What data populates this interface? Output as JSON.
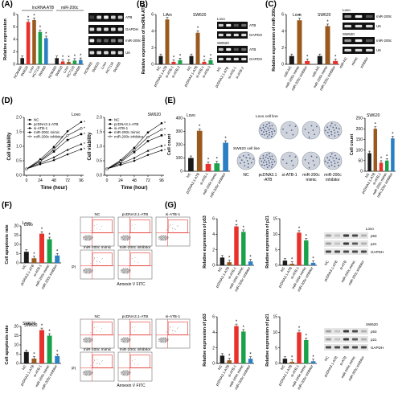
{
  "panel_labels": [
    "(A)",
    "(B)",
    "(C)",
    "(D)",
    "(E)",
    "(F)",
    "(G)"
  ],
  "colors": {
    "black": "#1a1a1a",
    "brown": "#9a5a1e",
    "red": "#e8312a",
    "green": "#1aa24a",
    "blue": "#2b7fc3",
    "gel_bg": "#111111",
    "band": "#f2f2f2",
    "gray": "#8c8c8c",
    "wb_bg": "#e6e6e6",
    "wb_band": "#3a3a3a",
    "dish": "#cfd4dc",
    "colony": "#50608c",
    "flow_box": "#e3302a"
  },
  "chart_data": [
    {
      "id": "A",
      "type": "bar",
      "ylabel": "Relative expression",
      "ylim": [
        0,
        8
      ],
      "yticks": [
        "0",
        "2",
        "4",
        "6",
        "8"
      ],
      "group_labels": [
        "lncRNA ATB",
        "miR-200c"
      ],
      "categories": [
        "NCM460",
        "SW620",
        "Lovo",
        "HCT116",
        "SW480",
        "NCM460",
        "SW620",
        "Lovo",
        "HCT116",
        "SW480"
      ],
      "values": [
        1,
        6.8,
        7.1,
        5.2,
        4.2,
        1,
        0.45,
        0.4,
        0.6,
        0.7
      ],
      "colors": [
        "#1a1a1a",
        "#e8312a",
        "#9a5a1e",
        "#1aa24a",
        "#2b7fc3",
        "#1a1a1a",
        "#e8312a",
        "#9a5a1e",
        "#1aa24a",
        "#2b7fc3"
      ],
      "stars": [
        false,
        true,
        true,
        true,
        true,
        false,
        true,
        true,
        true,
        true
      ],
      "blot_labels": [
        "ATB",
        "GAPDH",
        "miR-200c",
        "U6"
      ],
      "lanes": [
        "NCM460",
        "SW620",
        "Lovo",
        "HCT116",
        "SW480"
      ]
    },
    {
      "id": "B",
      "type": "bar",
      "ylabel": "Relative expression of lncRNA ATB",
      "ylim": [
        0,
        6
      ],
      "yticks": [
        "0",
        "2",
        "4",
        "6"
      ],
      "group_labels": [
        "Lovo",
        "SW620"
      ],
      "categories": [
        "NC",
        "pcDNA3.1-ATB",
        "si-ATB-1",
        "si-ATB-2",
        "NC",
        "pcDNA3.1-ATB",
        "si-ATB-1",
        "si-ATB-2"
      ],
      "values": [
        1,
        5.4,
        0.3,
        0.5,
        1,
        3.8,
        0.3,
        0.5
      ],
      "colors": [
        "#1a1a1a",
        "#9a5a1e",
        "#e8312a",
        "#1aa24a",
        "#1a1a1a",
        "#9a5a1e",
        "#e8312a",
        "#1aa24a"
      ],
      "stars": [
        false,
        true,
        true,
        true,
        false,
        true,
        true,
        true
      ],
      "blot_cells": [
        "Lovo",
        "SW620"
      ],
      "blot_labels": [
        "ATB",
        "GAPDH"
      ],
      "lanes": [
        "NC",
        "pcDNA3.1-ATB",
        "si-ATB-1",
        "si-ATB-2"
      ]
    },
    {
      "id": "C",
      "type": "bar",
      "ylabel": "Relative expression of miR-200c",
      "ylim": [
        0,
        6
      ],
      "yticks": [
        "0",
        "2",
        "4",
        "6"
      ],
      "group_labels": [
        "Lovo",
        "SW620"
      ],
      "categories": [
        "miR-NC",
        "miR-200c mimic",
        "miR-200c inhibitor",
        "miR-NC",
        "miR-200c mimic",
        "miR-200c inhibitor"
      ],
      "values": [
        1,
        5.3,
        0.4,
        1,
        4.6,
        0.4
      ],
      "colors": [
        "#1a1a1a",
        "#9a5a1e",
        "#e8312a",
        "#1a1a1a",
        "#9a5a1e",
        "#e8312a"
      ],
      "stars": [
        false,
        true,
        true,
        false,
        true,
        true
      ],
      "blot_cells": [
        "Lovo",
        "SW620"
      ],
      "blot_labels": [
        "miR-200c",
        "U6"
      ],
      "lanes": [
        "miR-NC",
        "mimic",
        "inhibitor"
      ]
    },
    {
      "id": "D1",
      "type": "line",
      "title": "Lovo",
      "xlabel": "Time (hour)",
      "ylabel": "Cell viability",
      "x": [
        0,
        24,
        48,
        72,
        96
      ],
      "xticks": [
        "0",
        "24",
        "48",
        "72",
        "96"
      ],
      "ylim": [
        0,
        2.0
      ],
      "yticks": [
        "0.0",
        "0.5",
        "1.0",
        "1.5",
        "2.0"
      ],
      "series": [
        {
          "name": "NC",
          "values": [
            0.22,
            0.48,
            0.82,
            1.22,
            1.42
          ],
          "marker": "square"
        },
        {
          "name": "pcDNA3.1-ATB",
          "values": [
            0.22,
            0.55,
            0.98,
            1.52,
            1.84
          ],
          "marker": "circle"
        },
        {
          "name": "si-ATB-1",
          "values": [
            0.22,
            0.42,
            0.62,
            0.88,
            1.08
          ],
          "marker": "triangle"
        },
        {
          "name": "miR-200c mimic",
          "values": [
            0.22,
            0.38,
            0.52,
            0.72,
            0.9
          ],
          "marker": "diamond"
        },
        {
          "name": "miR-200c inhibitor",
          "values": [
            0.22,
            0.5,
            0.9,
            1.38,
            1.62
          ],
          "marker": "circle-open"
        }
      ]
    },
    {
      "id": "D2",
      "type": "line",
      "title": "SW620",
      "xlabel": "Time (hour)",
      "ylabel": "Cell viability",
      "x": [
        0,
        24,
        48,
        72,
        96
      ],
      "xticks": [
        "0",
        "24",
        "48",
        "72",
        "96"
      ],
      "ylim": [
        0,
        2.0
      ],
      "yticks": [
        "0.0",
        "0.5",
        "1.0",
        "1.5",
        "2.0"
      ],
      "series": [
        {
          "name": "NC",
          "values": [
            0.22,
            0.45,
            0.8,
            1.18,
            1.38
          ],
          "marker": "square"
        },
        {
          "name": "pcDNA3.1-ATB",
          "values": [
            0.22,
            0.52,
            0.95,
            1.48,
            1.8
          ],
          "marker": "circle"
        },
        {
          "name": "si-ATB-1",
          "values": [
            0.22,
            0.4,
            0.6,
            0.85,
            1.02
          ],
          "marker": "triangle"
        },
        {
          "name": "miR-200c mimic",
          "values": [
            0.22,
            0.36,
            0.5,
            0.7,
            0.86
          ],
          "marker": "diamond"
        },
        {
          "name": "miR-200c inhibitor",
          "values": [
            0.22,
            0.48,
            0.88,
            1.32,
            1.58
          ],
          "marker": "circle-open"
        }
      ]
    },
    {
      "id": "E1",
      "type": "bar",
      "title": "Lovo",
      "ylabel": "Cell count",
      "ylim": [
        0,
        400
      ],
      "yticks": [
        "0",
        "100",
        "200",
        "300",
        "400"
      ],
      "categories": [
        "NC",
        "pcDNA3.1-ATB",
        "si-ATB-1",
        "miR-200c mimic",
        "miR-200c inhibitor"
      ],
      "values": [
        100,
        305,
        55,
        60,
        215
      ],
      "colors": [
        "#1a1a1a",
        "#9a5a1e",
        "#e8312a",
        "#1aa24a",
        "#2b7fc3"
      ],
      "stars": [
        false,
        true,
        true,
        true,
        true
      ]
    },
    {
      "id": "E2",
      "type": "bar",
      "title": "SW620",
      "ylabel": "Cell count",
      "ylim": [
        0,
        250
      ],
      "yticks": [
        "0",
        "50",
        "100",
        "150",
        "200",
        "250"
      ],
      "categories": [
        "NC",
        "pcDNA3.1-ATB",
        "si-ATB-1",
        "miR-200c mimic",
        "miR-200c inhibitor"
      ],
      "values": [
        85,
        200,
        40,
        50,
        155
      ],
      "colors": [
        "#1a1a1a",
        "#9a5a1e",
        "#e8312a",
        "#1aa24a",
        "#2b7fc3"
      ],
      "stars": [
        false,
        true,
        true,
        true,
        true
      ]
    },
    {
      "id": "F1",
      "type": "bar",
      "title": "Lovo",
      "ylabel": "Cell apoptosis rate",
      "ylim": [
        0,
        20
      ],
      "yticks": [
        "0",
        "5",
        "10",
        "15",
        "20"
      ],
      "categories": [
        "NC",
        "pcDNA3.1-ATB",
        "si-ATB-1",
        "miR-200c mimic",
        "miR-200c inhibitor"
      ],
      "values": [
        6,
        2.5,
        15.8,
        12.8,
        4
      ],
      "colors": [
        "#1a1a1a",
        "#9a5a1e",
        "#e8312a",
        "#1aa24a",
        "#2b7fc3"
      ],
      "stars": [
        false,
        true,
        true,
        true,
        true
      ]
    },
    {
      "id": "F2",
      "type": "bar",
      "title": "SW620",
      "ylabel": "Cell apoptosis rate",
      "ylim": [
        0,
        20
      ],
      "yticks": [
        "0",
        "5",
        "10",
        "15",
        "20"
      ],
      "categories": [
        "NC",
        "pcDNA3.1-ATB",
        "si-ATB-1",
        "miR-200c mimic",
        "miR-200c inhibitor"
      ],
      "values": [
        6.2,
        2.6,
        18,
        15,
        4
      ],
      "colors": [
        "#1a1a1a",
        "#9a5a1e",
        "#e8312a",
        "#1aa24a",
        "#2b7fc3"
      ],
      "stars": [
        false,
        true,
        true,
        true,
        true
      ]
    },
    {
      "id": "G1",
      "type": "bar",
      "ylabel": "Relative expression of p53",
      "ylim": [
        0,
        6
      ],
      "yticks": [
        "0",
        "2",
        "4",
        "6"
      ],
      "categories": [
        "NC",
        "pcDNA3.1-ATB",
        "si-ATB-1",
        "miR-200c mimic",
        "miR-200c inhibitor"
      ],
      "values": [
        1,
        0.4,
        5,
        4.3,
        0.5
      ],
      "colors": [
        "#1a1a1a",
        "#9a5a1e",
        "#e8312a",
        "#1aa24a",
        "#2b7fc3"
      ],
      "stars": [
        false,
        true,
        true,
        true,
        true
      ]
    },
    {
      "id": "G2",
      "type": "bar",
      "ylabel": "Relative expression of p21",
      "ylim": [
        0,
        15
      ],
      "yticks": [
        "0",
        "5",
        "10",
        "15"
      ],
      "categories": [
        "NC",
        "pcDNA3.1-ATB",
        "si-ATB-1",
        "miR-200c mimic",
        "miR-200c inhibitor"
      ],
      "values": [
        1.5,
        0.5,
        10.5,
        8,
        0.8
      ],
      "colors": [
        "#1a1a1a",
        "#9a5a1e",
        "#e8312a",
        "#1aa24a",
        "#2b7fc3"
      ],
      "stars": [
        false,
        true,
        true,
        true,
        true
      ]
    },
    {
      "id": "G3",
      "type": "bar",
      "ylabel": "Relative expression of p53",
      "ylim": [
        0,
        6
      ],
      "yticks": [
        "0",
        "2",
        "4",
        "6"
      ],
      "categories": [
        "NC",
        "pcDNA3.1-ATB",
        "si-ATB-1",
        "miR-200c mimic",
        "miR-200c inhibitor"
      ],
      "values": [
        1,
        0.4,
        4.8,
        4.1,
        0.6
      ],
      "colors": [
        "#1a1a1a",
        "#9a5a1e",
        "#e8312a",
        "#1aa24a",
        "#2b7fc3"
      ],
      "stars": [
        false,
        true,
        true,
        true,
        true
      ]
    },
    {
      "id": "G4",
      "type": "bar",
      "ylabel": "Relative expression of p21",
      "ylim": [
        0,
        15
      ],
      "yticks": [
        "0",
        "5",
        "10",
        "15"
      ],
      "categories": [
        "NC",
        "pcDNA3.1-ATB",
        "si-ATB-1",
        "miR-200c mimic",
        "miR-200c inhibitor"
      ],
      "values": [
        1.5,
        0.5,
        10,
        7.5,
        0.7
      ],
      "colors": [
        "#1a1a1a",
        "#9a5a1e",
        "#e8312a",
        "#1aa24a",
        "#2b7fc3"
      ],
      "stars": [
        false,
        true,
        true,
        true,
        true
      ]
    }
  ],
  "colony": {
    "cell_lines": [
      "Lovo cell line",
      "SW620 cell line"
    ],
    "labels": [
      "NC",
      "pcDNA3.1\n-ATB",
      "si-ATB-1",
      "miR-200c\nmimic",
      "miR-200c\ninhibitor"
    ]
  },
  "flow": {
    "conditions": [
      "NC",
      "pcDNA3.1-ATB",
      "si-ATB-1",
      "miR-200c mimic",
      "miR-200c inhibitor"
    ],
    "xlabel": "Annexin V FITC",
    "ylabel": "PI"
  },
  "western": {
    "cell_lines": [
      "Lovo",
      "SW620"
    ],
    "proteins": [
      "p53",
      "p21",
      "GAPDH"
    ],
    "lanes": [
      "NC",
      "pcDNA3.1-ATB",
      "si-ATB",
      "miR-200c mimic",
      "miR-200c inhibitor"
    ]
  }
}
